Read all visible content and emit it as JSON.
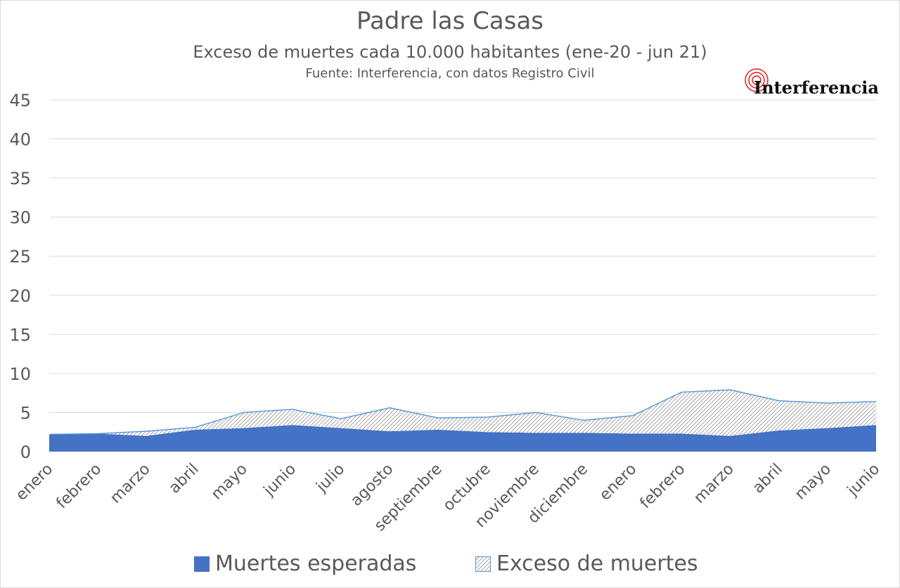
{
  "title": "Padre las Casas",
  "subtitle": "Exceso de muertes cada 10.000 habitantes (ene-20  - jun 21)",
  "source": "Fuente: Interferencia, con datos Registro Civil",
  "logo_text": "Interferencia",
  "colors": {
    "expected": "#4472c4",
    "excess_line": "#5b9bd5",
    "grid": "#d9d9d9",
    "text": "#595959",
    "logo_red": "#e02020"
  },
  "chart_data": {
    "type": "area",
    "stacked": true,
    "categories": [
      "enero",
      "febrero",
      "marzo",
      "abril",
      "mayo",
      "junio",
      "julio",
      "agosto",
      "septiembre",
      "octubre",
      "noviembre",
      "diciembre",
      "enero",
      "febrero",
      "marzo",
      "abril",
      "mayo",
      "junio"
    ],
    "series": [
      {
        "name": "Muertes esperadas",
        "values": [
          2.2,
          2.3,
          2.0,
          2.8,
          3.0,
          3.4,
          3.0,
          2.6,
          2.8,
          2.5,
          2.4,
          2.4,
          2.3,
          2.3,
          2.0,
          2.7,
          3.0,
          3.4
        ]
      },
      {
        "name": "Exceso de muertes",
        "values": [
          0.0,
          0.0,
          0.6,
          0.3,
          2.0,
          2.0,
          1.2,
          3.0,
          1.5,
          1.9,
          2.6,
          1.6,
          2.3,
          5.3,
          5.9,
          3.8,
          3.2,
          3.0
        ]
      }
    ],
    "yticks": [
      "0",
      "5",
      "10",
      "15",
      "20",
      "25",
      "30",
      "35",
      "40",
      "45"
    ],
    "ylim": [
      0,
      45
    ],
    "grid": true,
    "legend_position": "bottom"
  }
}
